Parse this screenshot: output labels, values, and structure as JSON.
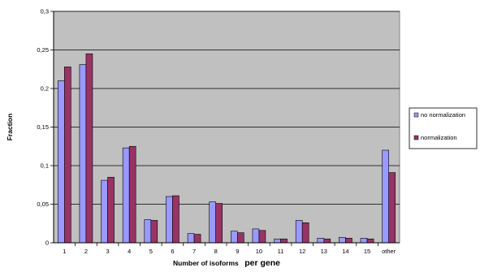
{
  "chart_data": {
    "type": "bar",
    "xlabel_prefix": "Number of isoforms",
    "xlabel_suffix": "per gene",
    "ylabel": "Fraction",
    "ylim": [
      0,
      0.3
    ],
    "yticks": [
      "0",
      "0,05",
      "0,1",
      "0,15",
      "0,2",
      "0,25",
      "0,3"
    ],
    "categories": [
      "1",
      "2",
      "3",
      "4",
      "5",
      "6",
      "7",
      "8",
      "9",
      "10",
      "11",
      "12",
      "13",
      "14",
      "15",
      "other"
    ],
    "series": [
      {
        "name": "no normalization",
        "color": "#9999ff",
        "values": [
          0.21,
          0.231,
          0.081,
          0.123,
          0.03,
          0.06,
          0.012,
          0.053,
          0.015,
          0.018,
          0.005,
          0.029,
          0.006,
          0.007,
          0.006,
          0.12
        ]
      },
      {
        "name": "normalization",
        "color": "#993366",
        "values": [
          0.228,
          0.245,
          0.085,
          0.125,
          0.029,
          0.061,
          0.011,
          0.051,
          0.013,
          0.016,
          0.005,
          0.026,
          0.005,
          0.006,
          0.005,
          0.091
        ]
      }
    ],
    "grid": true,
    "legend_position": "right",
    "plot_background": "#c0c0c0"
  }
}
